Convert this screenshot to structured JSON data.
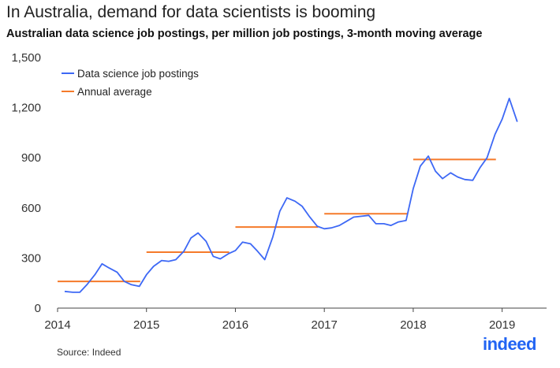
{
  "title": "In Australia, demand for data scientists is booming",
  "subtitle": "Australian data science job postings, per million job postings, 3-month moving average",
  "source": "Source: Indeed",
  "logo_text": "indeed",
  "colors": {
    "series": "#3d68f5",
    "average": "#f57a2a",
    "axis": "#333333",
    "logo": "#2164f3"
  },
  "chart_data": {
    "type": "line",
    "title": "In Australia, demand for data scientists is booming",
    "subtitle": "Australian data science job postings, per million job postings, 3-month moving average",
    "xlabel": "",
    "ylabel": "",
    "xlim": [
      2014,
      2019.5
    ],
    "ylim": [
      0,
      1500
    ],
    "xticks": [
      "2014",
      "2015",
      "2016",
      "2017",
      "2018",
      "2019"
    ],
    "xtick_values": [
      2014,
      2015,
      2016,
      2017,
      2018,
      2019
    ],
    "yticks": [
      "0",
      "300",
      "600",
      "900",
      "1,200",
      "1,500"
    ],
    "ytick_values": [
      0,
      300,
      600,
      900,
      1200,
      1500
    ],
    "grid": false,
    "legend_position": "top-left",
    "series": [
      {
        "name": "Data science job postings",
        "type": "line",
        "x": [
          2014.08,
          2014.17,
          2014.25,
          2014.33,
          2014.42,
          2014.5,
          2014.58,
          2014.67,
          2014.75,
          2014.83,
          2014.92,
          2015.0,
          2015.08,
          2015.17,
          2015.25,
          2015.33,
          2015.42,
          2015.5,
          2015.58,
          2015.67,
          2015.75,
          2015.83,
          2015.92,
          2016.0,
          2016.08,
          2016.17,
          2016.25,
          2016.33,
          2016.42,
          2016.5,
          2016.58,
          2016.67,
          2016.75,
          2016.83,
          2016.92,
          2017.0,
          2017.08,
          2017.17,
          2017.25,
          2017.33,
          2017.42,
          2017.5,
          2017.58,
          2017.67,
          2017.75,
          2017.83,
          2017.92,
          2018.0,
          2018.08,
          2018.17,
          2018.25,
          2018.33,
          2018.42,
          2018.5,
          2018.58,
          2018.67,
          2018.75,
          2018.83,
          2018.92,
          2019.0,
          2019.08,
          2019.17
        ],
        "y": [
          100,
          95,
          95,
          140,
          200,
          265,
          240,
          215,
          160,
          140,
          130,
          200,
          250,
          285,
          280,
          290,
          340,
          420,
          450,
          400,
          310,
          295,
          325,
          345,
          395,
          385,
          340,
          290,
          425,
          580,
          660,
          640,
          610,
          550,
          490,
          475,
          480,
          495,
          520,
          545,
          550,
          555,
          505,
          505,
          495,
          515,
          525,
          715,
          850,
          910,
          820,
          775,
          810,
          785,
          770,
          765,
          840,
          900,
          1040,
          1130,
          1255,
          1115
        ]
      },
      {
        "name": "Annual average",
        "type": "step",
        "segments": [
          {
            "year": "2014",
            "value": 160
          },
          {
            "year": "2015",
            "value": 335
          },
          {
            "year": "2016",
            "value": 485
          },
          {
            "year": "2017",
            "value": 565
          },
          {
            "year": "2018",
            "value": 890
          }
        ]
      }
    ]
  }
}
